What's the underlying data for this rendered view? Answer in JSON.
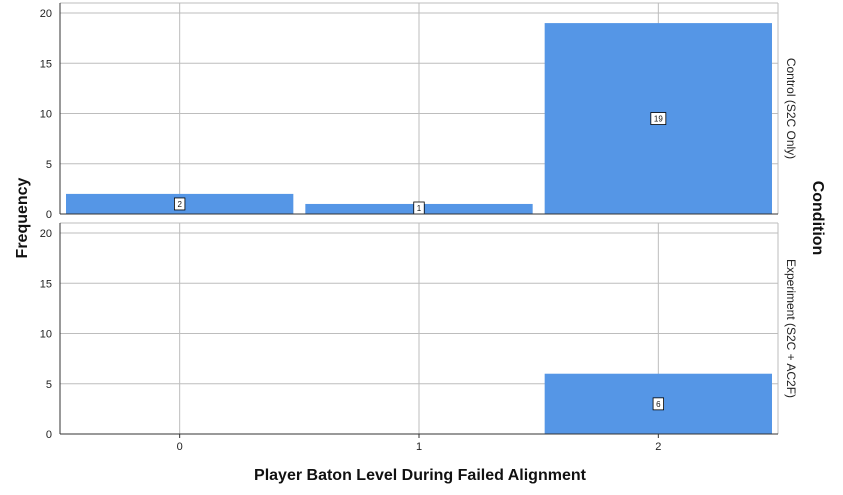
{
  "chart_data": {
    "type": "bar",
    "layout": "faceted-rows",
    "xlabel": "Player Baton Level During Failed Alignment",
    "ylabel": "Frequency",
    "facet_title": "Condition",
    "categories": [
      "0",
      "1",
      "2"
    ],
    "ylim": [
      0,
      21
    ],
    "yticks": [
      0,
      5,
      10,
      15,
      20
    ],
    "grid": true,
    "bar_color": "#5596E6",
    "panels": [
      {
        "facet": "Control (S2C Only)",
        "values": [
          2,
          1,
          19
        ]
      },
      {
        "facet": "Experiment (S2C + AC2F)",
        "values": [
          null,
          null,
          6
        ]
      }
    ]
  }
}
